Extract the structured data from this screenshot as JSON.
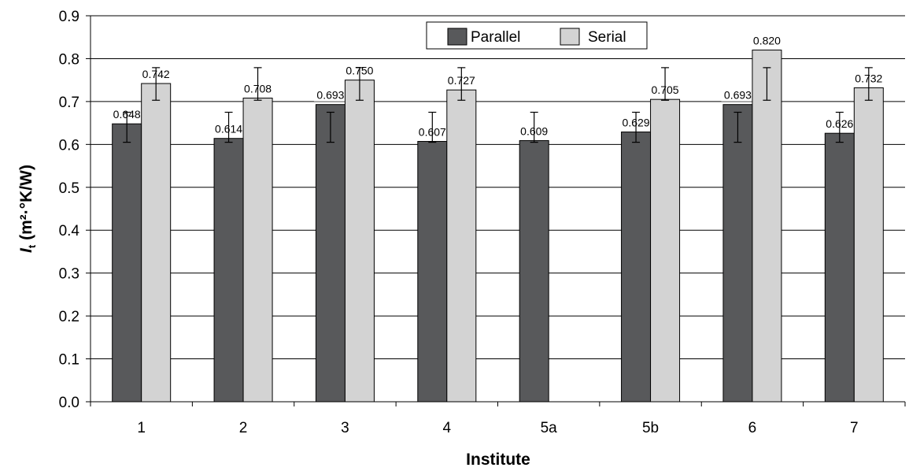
{
  "chart_data": {
    "type": "bar",
    "title": "",
    "xlabel": "Institute",
    "ylabel_main": "I",
    "ylabel_sub": "t",
    "ylabel_unit": " (m²·°K/W)",
    "ylim": [
      0,
      0.9
    ],
    "yticks": [
      "0.0",
      "0.1",
      "0.2",
      "0.3",
      "0.4",
      "0.5",
      "0.6",
      "0.7",
      "0.8",
      "0.9"
    ],
    "grid": true,
    "legend_position": "top-center",
    "categories": [
      "1",
      "2",
      "3",
      "4",
      "5a",
      "5b",
      "6",
      "7"
    ],
    "series": [
      {
        "name": "Parallel",
        "color": "#58595b",
        "values": [
          0.648,
          0.614,
          0.693,
          0.607,
          0.609,
          0.629,
          0.693,
          0.626
        ],
        "labels": [
          "0.648",
          "0.614",
          "0.693",
          "0.607",
          "0.609",
          "0.629",
          "0.693",
          "0.626"
        ],
        "error_low": [
          0.605,
          0.605,
          0.605,
          0.605,
          0.605,
          0.605,
          0.605,
          0.605
        ],
        "error_high": [
          0.675,
          0.675,
          0.675,
          0.675,
          0.675,
          0.675,
          0.675,
          0.675
        ]
      },
      {
        "name": "Serial",
        "color": "#d3d3d3",
        "values": [
          0.742,
          0.708,
          0.75,
          0.727,
          null,
          0.705,
          0.82,
          0.732
        ],
        "labels": [
          "0.742",
          "0.708",
          "0.750",
          "0.727",
          "",
          "0.705",
          "0.820",
          "0.732"
        ],
        "error_low": [
          0.703,
          0.703,
          0.703,
          0.703,
          null,
          0.703,
          0.703,
          0.703
        ],
        "error_high": [
          0.779,
          0.779,
          0.779,
          0.779,
          null,
          0.779,
          0.779,
          0.779
        ]
      }
    ]
  }
}
